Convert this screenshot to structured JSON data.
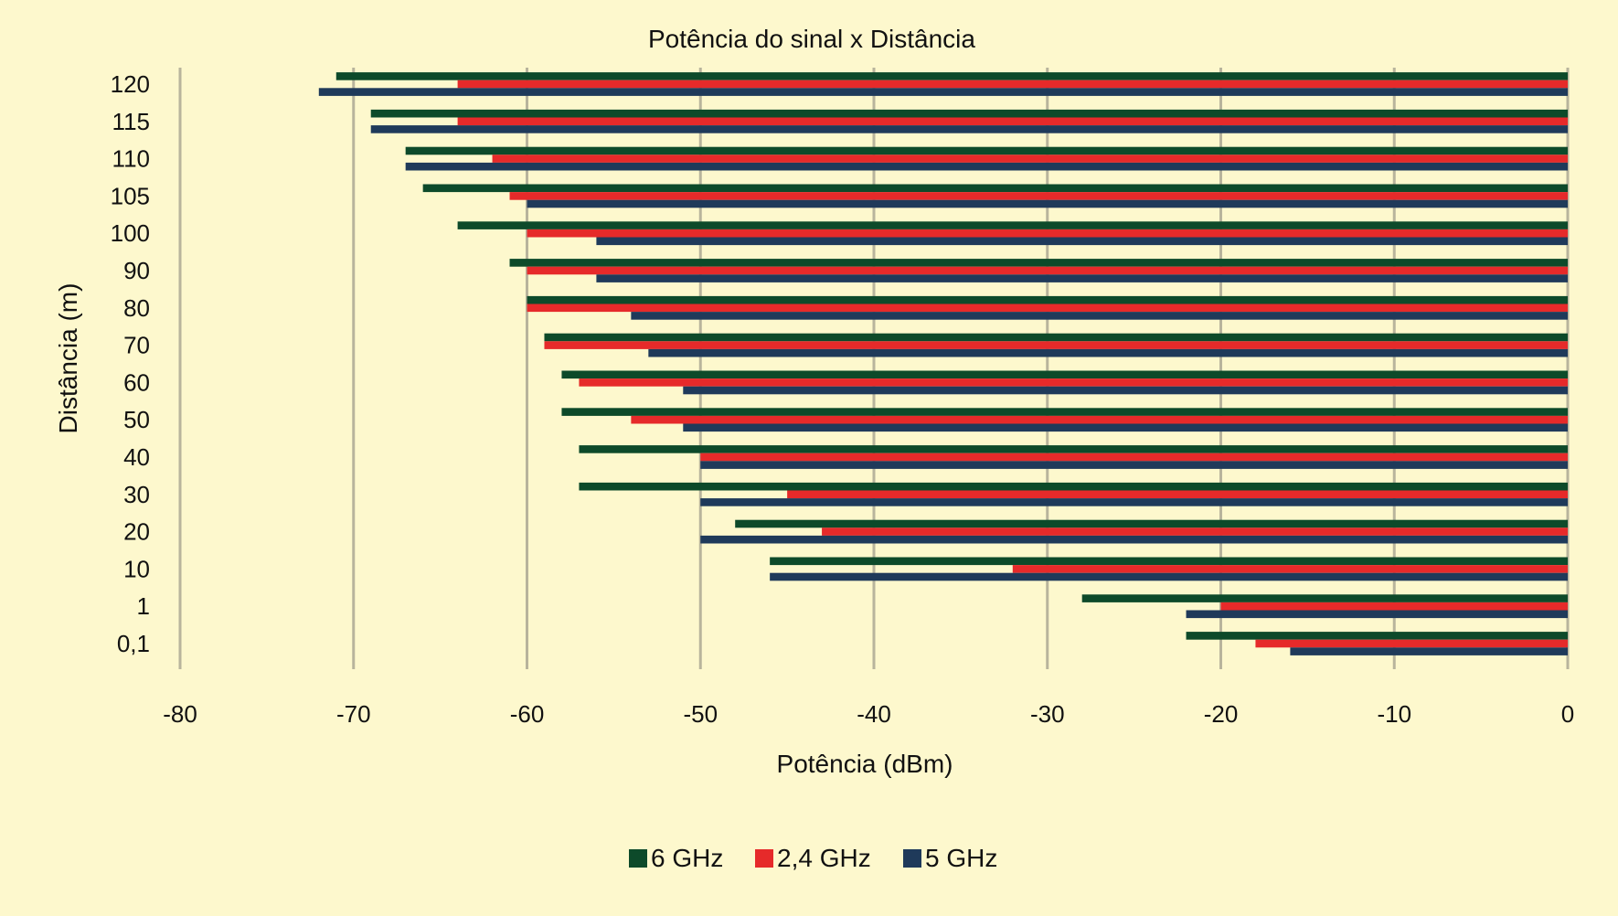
{
  "chart_data": {
    "type": "bar",
    "orientation": "horizontal",
    "title": "Potência do sinal x Distância",
    "xlabel": "Potência (dBm)",
    "ylabel": "Distância (m)",
    "xlim": [
      -80,
      0
    ],
    "xticks": [
      -80,
      -70,
      -60,
      -50,
      -40,
      -30,
      -20,
      -10,
      0
    ],
    "xtick_labels": [
      "-80",
      "-70",
      "-60",
      "-50",
      "-40",
      "-30",
      "-20",
      "-10",
      "0"
    ],
    "grid": "vertical",
    "legend_position": "bottom",
    "categories": [
      "120",
      "115",
      "110",
      "105",
      "100",
      "90",
      "80",
      "70",
      "60",
      "50",
      "40",
      "30",
      "20",
      "10",
      "1",
      "0,1"
    ],
    "series": [
      {
        "name": "6 GHz",
        "color": "#0d4a2a",
        "values": [
          -71,
          -69,
          -67,
          -66,
          -64,
          -61,
          -60,
          -59,
          -58,
          -58,
          -57,
          -57,
          -48,
          -46,
          -28,
          -22
        ]
      },
      {
        "name": "2,4 GHz",
        "color": "#e62a2a",
        "values": [
          -64,
          -64,
          -62,
          -61,
          -60,
          -60,
          -60,
          -59,
          -57,
          -54,
          -50,
          -45,
          -43,
          -32,
          -20,
          -18
        ]
      },
      {
        "name": "5 GHz",
        "color": "#1f3a5a",
        "values": [
          -72,
          -69,
          -67,
          -60,
          -56,
          -56,
          -54,
          -53,
          -51,
          -51,
          -50,
          -50,
          -50,
          -46,
          -22,
          -16
        ]
      }
    ]
  }
}
